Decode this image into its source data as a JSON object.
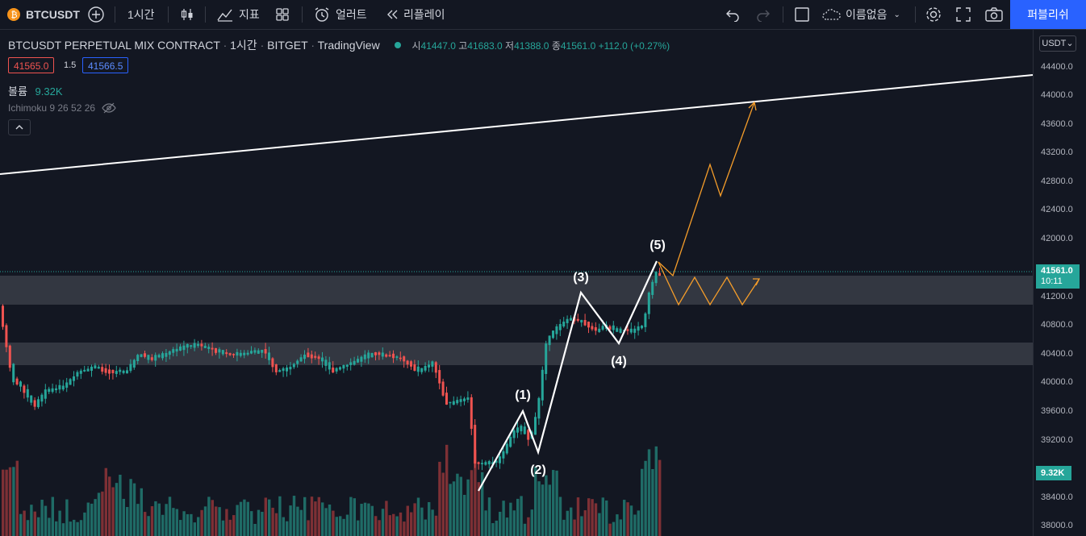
{
  "toolbar": {
    "symbol": "BTCUSDT",
    "interval": "1시간",
    "indicators": "지표",
    "alert": "얼러트",
    "replay": "리플레이",
    "layout_name": "이름없음",
    "publish": "퍼블리쉬"
  },
  "legend": {
    "title": "BTCUSDT PERPETUAL MIX CONTRACT",
    "interval": "1시간",
    "exchange": "BITGET",
    "source": "TradingView",
    "open_label": "시",
    "open": "41447.0",
    "high_label": "고",
    "high": "41683.0",
    "low_label": "저",
    "low": "41388.0",
    "close_label": "종",
    "close": "41561.0",
    "change": "+112.0 (+0.27%)",
    "bid": "41565.0",
    "spread": "1.5",
    "ask": "41566.5",
    "volume_label": "볼륨",
    "volume": "9.32K",
    "ichimoku": "Ichimoku 9 26 52 26"
  },
  "axis": {
    "currency": "USDT",
    "ticks": [
      "44400.0",
      "44000.0",
      "43600.0",
      "43200.0",
      "42800.0",
      "42400.0",
      "42000.0",
      "41200.0",
      "40800.0",
      "40400.0",
      "40000.0",
      "39600.0",
      "39200.0",
      "38400.0",
      "38000.0"
    ],
    "last_price": "41561.0",
    "countdown": "10:11",
    "volume_tag": "9.32K"
  },
  "waves": [
    "(1)",
    "(2)",
    "(3)",
    "(4)",
    "(5)"
  ],
  "colors": {
    "up": "#26a69a",
    "down": "#ef5350",
    "accent": "#2962ff",
    "projection": "#f59d2a",
    "zone": "#3a3d47"
  }
}
